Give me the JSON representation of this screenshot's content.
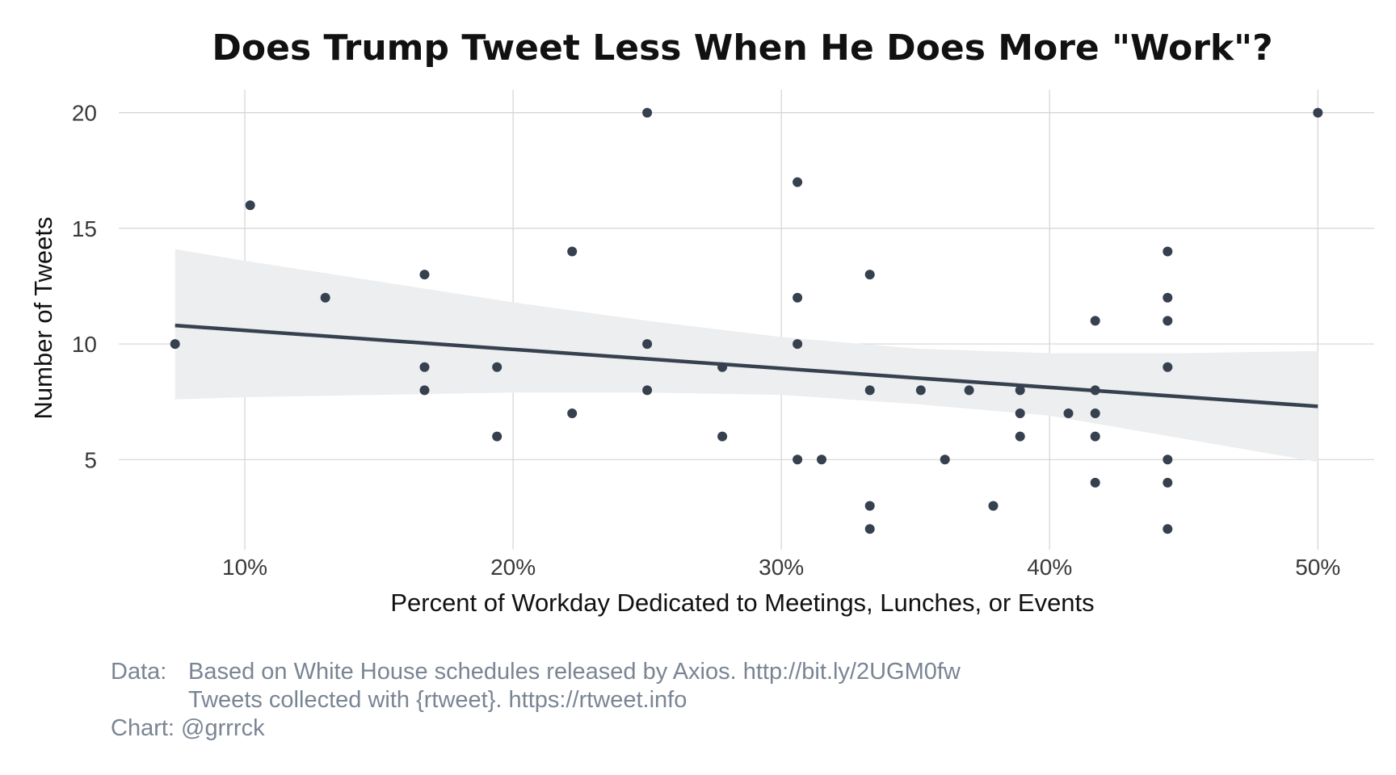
{
  "chart_data": {
    "type": "scatter",
    "title": "Does Trump Tweet Less When He Does More \"Work\"?",
    "xlabel": "Percent of Workday Dedicated to Meetings, Lunches, or Events",
    "ylabel": "Number of Tweets",
    "xlim": [
      5.3,
      52.1
    ],
    "ylim": [
      1.1,
      21.0
    ],
    "x_ticks": [
      10,
      20,
      30,
      40,
      50
    ],
    "x_tick_labels": [
      "10%",
      "20%",
      "30%",
      "40%",
      "50%"
    ],
    "y_ticks": [
      5,
      10,
      15,
      20
    ],
    "y_tick_labels": [
      "5",
      "10",
      "15",
      "20"
    ],
    "grid": true,
    "colors": {
      "points": "#36404f",
      "trend": "#36404f",
      "band": "#eceeef",
      "grid": "#d4d4d4"
    },
    "points": [
      {
        "x": 7.4,
        "y": 10
      },
      {
        "x": 10.2,
        "y": 16
      },
      {
        "x": 13.0,
        "y": 12
      },
      {
        "x": 16.7,
        "y": 13
      },
      {
        "x": 16.7,
        "y": 9
      },
      {
        "x": 16.7,
        "y": 8
      },
      {
        "x": 19.4,
        "y": 9
      },
      {
        "x": 19.4,
        "y": 6
      },
      {
        "x": 22.2,
        "y": 14
      },
      {
        "x": 22.2,
        "y": 7
      },
      {
        "x": 25.0,
        "y": 20
      },
      {
        "x": 25.0,
        "y": 10
      },
      {
        "x": 25.0,
        "y": 8
      },
      {
        "x": 27.8,
        "y": 9
      },
      {
        "x": 27.8,
        "y": 6
      },
      {
        "x": 30.6,
        "y": 17
      },
      {
        "x": 30.6,
        "y": 12
      },
      {
        "x": 30.6,
        "y": 10
      },
      {
        "x": 30.6,
        "y": 5
      },
      {
        "x": 31.5,
        "y": 5
      },
      {
        "x": 33.3,
        "y": 13
      },
      {
        "x": 33.3,
        "y": 8
      },
      {
        "x": 33.3,
        "y": 3
      },
      {
        "x": 33.3,
        "y": 2
      },
      {
        "x": 35.2,
        "y": 8
      },
      {
        "x": 36.1,
        "y": 5
      },
      {
        "x": 37.0,
        "y": 8
      },
      {
        "x": 37.9,
        "y": 3
      },
      {
        "x": 38.9,
        "y": 8
      },
      {
        "x": 38.9,
        "y": 7
      },
      {
        "x": 38.9,
        "y": 6
      },
      {
        "x": 40.7,
        "y": 7
      },
      {
        "x": 41.7,
        "y": 11
      },
      {
        "x": 41.7,
        "y": 8
      },
      {
        "x": 41.7,
        "y": 7
      },
      {
        "x": 41.7,
        "y": 6
      },
      {
        "x": 41.7,
        "y": 4
      },
      {
        "x": 44.4,
        "y": 14
      },
      {
        "x": 44.4,
        "y": 12
      },
      {
        "x": 44.4,
        "y": 11
      },
      {
        "x": 44.4,
        "y": 9
      },
      {
        "x": 44.4,
        "y": 5
      },
      {
        "x": 44.4,
        "y": 4
      },
      {
        "x": 44.4,
        "y": 2
      },
      {
        "x": 50.0,
        "y": 20
      }
    ],
    "trend_line": {
      "x": [
        7.4,
        50.0
      ],
      "y": [
        10.8,
        7.3
      ]
    },
    "confidence_band": {
      "x": [
        7.4,
        10,
        15,
        20,
        25,
        30,
        35,
        40,
        45,
        50
      ],
      "upper": [
        14.1,
        13.6,
        12.7,
        11.8,
        11.0,
        10.3,
        9.8,
        9.6,
        9.6,
        9.7
      ],
      "lower": [
        7.6,
        7.7,
        7.8,
        7.9,
        7.9,
        7.8,
        7.4,
        6.9,
        5.9,
        4.9
      ]
    }
  },
  "caption": {
    "data_key": "Data:",
    "data_line1": "Based on White House schedules released by Axios. http://bit.ly/2UGM0fw",
    "data_line2": "Tweets collected with {rtweet}. https://rtweet.info",
    "chart_credit": "Chart: @grrrck"
  }
}
